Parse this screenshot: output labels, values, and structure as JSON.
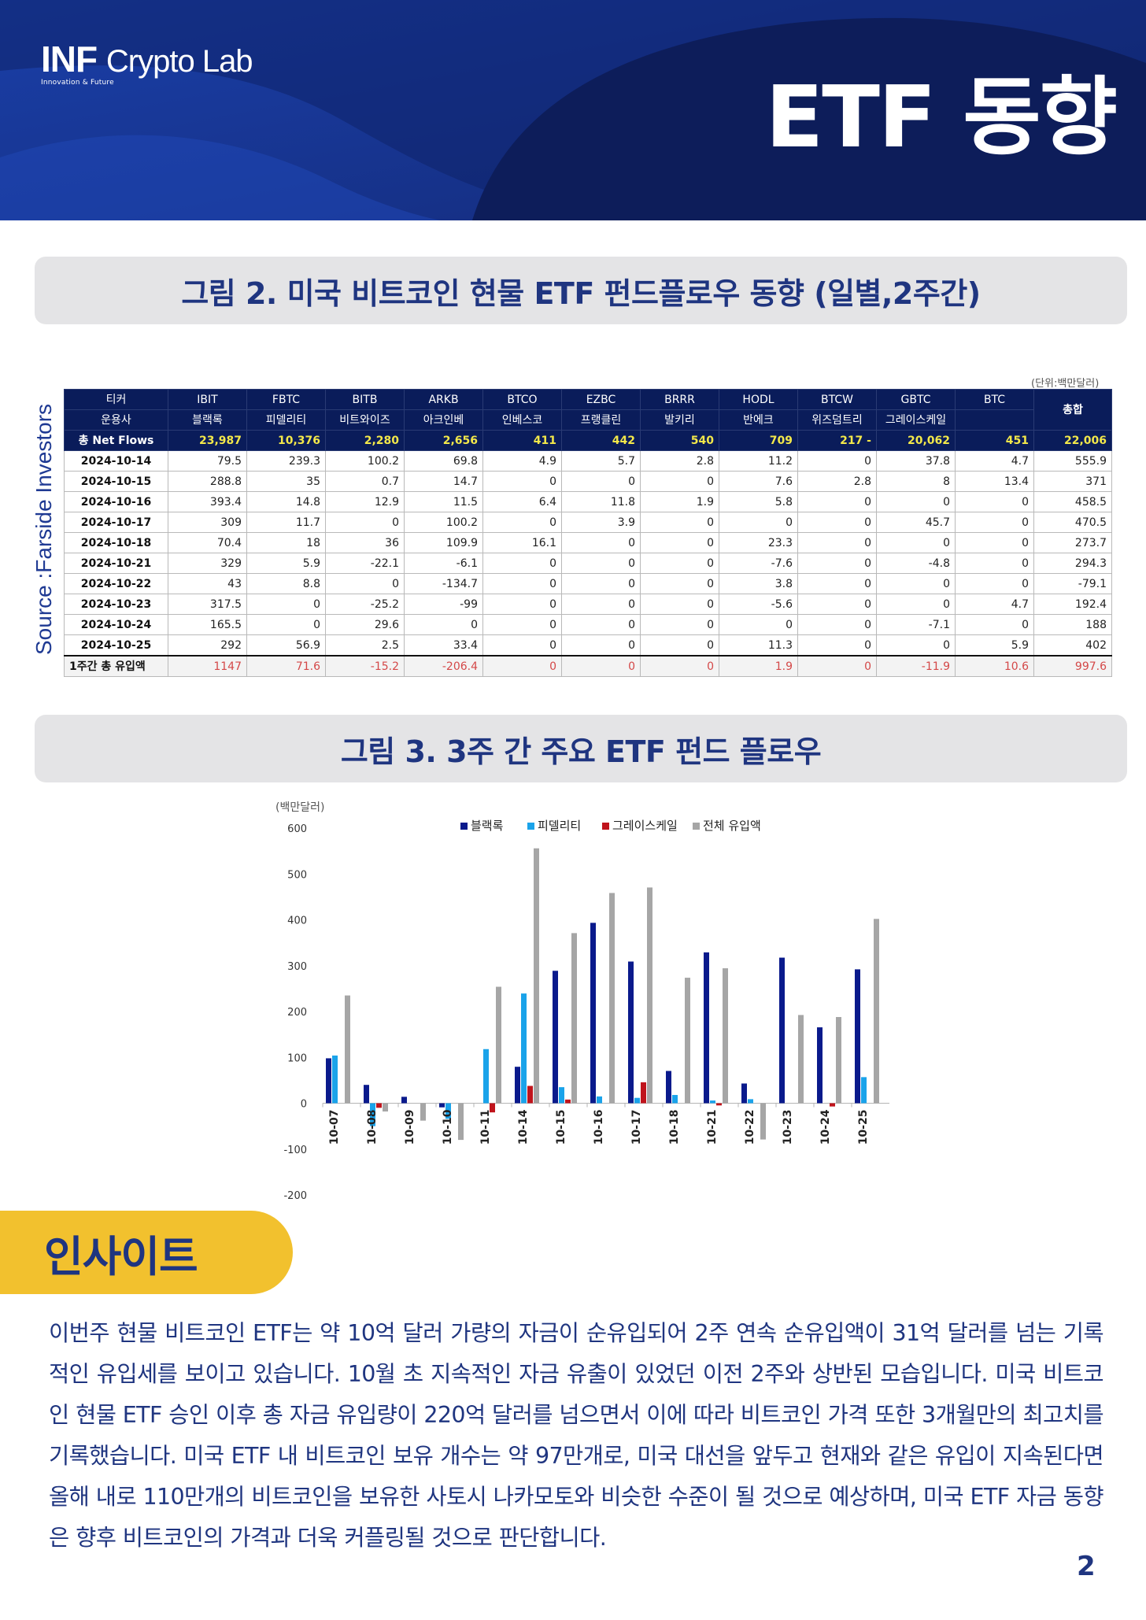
{
  "header": {
    "logo_main": "INF",
    "logo_sub": "Crypto Lab",
    "logo_tagline": "Innovation & Future",
    "page_title": "ETF 동향"
  },
  "figure2": {
    "title": "그림 2.  미국 비트코인 현물 ETF 펀드플로우 동향 (일별,2주간)",
    "source": "Source :Farside Investors",
    "unit_note": "(단위:백만달러)",
    "ticker_label": "티커",
    "issuer_label": "운용사",
    "netflow_label": "총 Net Flows",
    "total_label": "총합",
    "tickers": [
      "IBIT",
      "FBTC",
      "BITB",
      "ARKB",
      "BTCO",
      "EZBC",
      "BRRR",
      "HODL",
      "BTCW",
      "GBTC",
      "BTC"
    ],
    "issuers": [
      "블랙록",
      "피델리티",
      "비트와이즈",
      "아크인베",
      "인베스코",
      "프랭클린",
      "발키리",
      "반에크",
      "위즈덤트리",
      "그레이스케일",
      ""
    ],
    "net_flows": [
      "23,987",
      "10,376",
      "2,280",
      "2,656",
      "411",
      "442",
      "540",
      "709",
      "217  -",
      "20,062",
      "451",
      "22,006"
    ],
    "rows": [
      {
        "date": "2024-10-14",
        "values": [
          "79.5",
          "239.3",
          "100.2",
          "69.8",
          "4.9",
          "5.7",
          "2.8",
          "11.2",
          "0",
          "37.8",
          "4.7",
          "555.9"
        ]
      },
      {
        "date": "2024-10-15",
        "values": [
          "288.8",
          "35",
          "0.7",
          "14.7",
          "0",
          "0",
          "0",
          "7.6",
          "2.8",
          "8",
          "13.4",
          "371"
        ]
      },
      {
        "date": "2024-10-16",
        "values": [
          "393.4",
          "14.8",
          "12.9",
          "11.5",
          "6.4",
          "11.8",
          "1.9",
          "5.8",
          "0",
          "0",
          "0",
          "458.5"
        ]
      },
      {
        "date": "2024-10-17",
        "values": [
          "309",
          "11.7",
          "0",
          "100.2",
          "0",
          "3.9",
          "0",
          "0",
          "0",
          "45.7",
          "0",
          "470.5"
        ]
      },
      {
        "date": "2024-10-18",
        "values": [
          "70.4",
          "18",
          "36",
          "109.9",
          "16.1",
          "0",
          "0",
          "23.3",
          "0",
          "0",
          "0",
          "273.7"
        ]
      },
      {
        "date": "2024-10-21",
        "values": [
          "329",
          "5.9",
          "-22.1",
          "-6.1",
          "0",
          "0",
          "0",
          "-7.6",
          "0",
          "-4.8",
          "0",
          "294.3"
        ]
      },
      {
        "date": "2024-10-22",
        "values": [
          "43",
          "8.8",
          "0",
          "-134.7",
          "0",
          "0",
          "0",
          "3.8",
          "0",
          "0",
          "0",
          "-79.1"
        ]
      },
      {
        "date": "2024-10-23",
        "values": [
          "317.5",
          "0",
          "-25.2",
          "-99",
          "0",
          "0",
          "0",
          "-5.6",
          "0",
          "0",
          "4.7",
          "192.4"
        ]
      },
      {
        "date": "2024-10-24",
        "values": [
          "165.5",
          "0",
          "29.6",
          "0",
          "0",
          "0",
          "0",
          "0",
          "0",
          "-7.1",
          "0",
          "188"
        ]
      },
      {
        "date": "2024-10-25",
        "values": [
          "292",
          "56.9",
          "2.5",
          "33.4",
          "0",
          "0",
          "0",
          "11.3",
          "0",
          "0",
          "5.9",
          "402"
        ]
      }
    ],
    "footer_label": "1주간 총 유입액",
    "footer_values": [
      "1147",
      "71.6",
      "-15.2",
      "-206.4",
      "0",
      "0",
      "0",
      "1.9",
      "0",
      "-11.9",
      "10.6",
      "997.6"
    ]
  },
  "figure3": {
    "title": "그림 3.  3주 간 주요 ETF 펀드 플로우"
  },
  "chart_data": {
    "type": "bar",
    "title": "",
    "ylabel": "(백만달러)",
    "xlabel": "",
    "ylim": [
      -200,
      600
    ],
    "yticks": [
      -200,
      -100,
      0,
      100,
      200,
      300,
      400,
      500,
      600
    ],
    "categories": [
      "10-07",
      "10-08",
      "10-09",
      "10-10",
      "10-11",
      "10-14",
      "10-15",
      "10-16",
      "10-17",
      "10-18",
      "10-21",
      "10-22",
      "10-23",
      "10-24",
      "10-25"
    ],
    "series": [
      {
        "name": "블랙록",
        "color": "#0a1a8c",
        "values": [
          98,
          40,
          14,
          -9,
          0,
          79.5,
          288.8,
          393.4,
          309,
          70.4,
          329,
          43,
          317.5,
          165.5,
          292
        ]
      },
      {
        "name": "피델리티",
        "color": "#1aa3ea",
        "values": [
          104,
          -50,
          0,
          -34,
          118,
          239.3,
          35,
          14.8,
          11.7,
          18,
          5.9,
          8.8,
          0,
          0,
          56.9
        ]
      },
      {
        "name": "그레이스케일",
        "color": "#c0141c",
        "values": [
          0,
          -10,
          0,
          0,
          -20,
          37.8,
          8,
          0,
          45.7,
          0,
          -4.8,
          0,
          0,
          -7.1,
          0
        ]
      },
      {
        "name": "전체 유입액",
        "color": "#a6a6a6",
        "values": [
          235,
          -18,
          -38,
          -80,
          254,
          555.9,
          371,
          458.5,
          470.5,
          273.7,
          294.3,
          -79.1,
          192.4,
          188,
          402
        ]
      }
    ],
    "legend": "top"
  },
  "insight": {
    "title": "인사이트",
    "body": "이번주 현물 비트코인 ETF는 약 10억 달러 가량의 자금이 순유입되어 2주 연속 순유입액이 31억 달러를 넘는 기록적인 유입세를 보이고 있습니다. 10월 초 지속적인 자금 유출이 있었던 이전 2주와 상반된 모습입니다. 미국 비트코인 현물 ETF 승인 이후 총 자금 유입량이 220억 달러를 넘으면서 이에 따라 비트코인 가격 또한 3개월만의 최고치를 기록했습니다. 미국 ETF 내 비트코인 보유 개수는 약 97만개로, 미국 대선을 앞두고 현재와 같은 유입이 지속된다면 올해 내로 110만개의 비트코인을 보유한 사토시 나카모토와 비슷한 수준이 될 것으로 예상하며, 미국 ETF 자금 동향은 향후 비트코인의 가격과 더욱 커플링될 것으로 판단합니다."
  },
  "page_number": "2"
}
